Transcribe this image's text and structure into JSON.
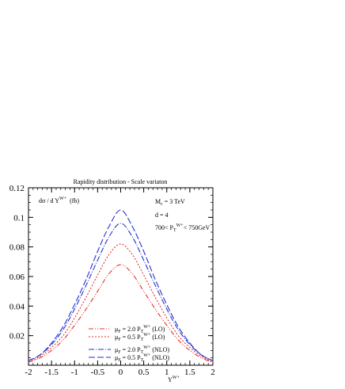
{
  "chart_data": {
    "type": "line",
    "title": "Rapidity distribution - Scale variaton",
    "ylabel": {
      "main": "dσ / d Y",
      "sup": "W+",
      "unit": "(fb)"
    },
    "xlabel": {
      "main": "Y",
      "sup": "W+"
    },
    "xlim": [
      -2,
      2
    ],
    "ylim": [
      0,
      0.12
    ],
    "xticks": [
      "-2",
      "-1.5",
      "-1",
      "-0.5",
      "0",
      "0.5",
      "1",
      "1.5",
      "2"
    ],
    "yticks": [
      "0.02",
      "0.04",
      "0.06",
      "0.08",
      "0.1",
      "0.12"
    ],
    "grid": false,
    "annotations": {
      "mass": {
        "main": "M",
        "sub": "c",
        "rest": " = 3 TeV"
      },
      "dim": "d = 4",
      "cut": {
        "pre": "700< P",
        "sub": "T",
        "sup": "W+",
        "post": "< 750GeV"
      }
    },
    "legend": {
      "position": "bottom-center",
      "entries": [
        {
          "mu": "μ",
          "mu_sub": "F",
          "text_pre": " = 2.0 P",
          "text_sub": "T",
          "text_sup": "W+",
          "text_post": " (LO)",
          "series": 0
        },
        {
          "mu": "μ",
          "mu_sub": "F",
          "text_pre": " = 0.5 P",
          "text_sub": "T",
          "text_sup": "W+",
          "text_post": " (LO)",
          "series": 1
        },
        {
          "mu": "μ",
          "mu_sub": "F",
          "text_pre": " = 2.0 P",
          "text_sub": "T",
          "text_sup": "W+",
          "text_post": " (NLO)",
          "series": 2
        },
        {
          "mu": "μ",
          "mu_sub": "F",
          "text_pre": " = 0.5 P",
          "text_sub": "T",
          "text_sup": "W+",
          "text_post": " (NLO)",
          "series": 3
        }
      ]
    },
    "x": [
      -2.0,
      -1.75,
      -1.5,
      -1.25,
      -1.0,
      -0.75,
      -0.5,
      -0.25,
      0.0,
      0.25,
      0.5,
      0.75,
      1.0,
      1.25,
      1.5,
      1.75,
      2.0
    ],
    "series": [
      {
        "name": "μF = 2.0 PT W+ (LO)",
        "color": "#e8322a",
        "dash": "6,2,1,2,1,2",
        "values": [
          0.002,
          0.005,
          0.01,
          0.017,
          0.027,
          0.038,
          0.05,
          0.062,
          0.068,
          0.062,
          0.05,
          0.038,
          0.027,
          0.017,
          0.01,
          0.005,
          0.002
        ]
      },
      {
        "name": "μF = 0.5 PT W+ (LO)",
        "color": "#e8322a",
        "dash": "2,2",
        "values": [
          0.002,
          0.006,
          0.012,
          0.02,
          0.032,
          0.046,
          0.061,
          0.075,
          0.082,
          0.075,
          0.061,
          0.046,
          0.032,
          0.02,
          0.012,
          0.006,
          0.002
        ]
      },
      {
        "name": "μF = 2.0 PT W+ (NLO)",
        "color": "#2233cc",
        "dash": "7,2,1,2",
        "values": [
          0.003,
          0.007,
          0.014,
          0.024,
          0.038,
          0.054,
          0.071,
          0.087,
          0.096,
          0.087,
          0.071,
          0.054,
          0.038,
          0.024,
          0.014,
          0.007,
          0.003
        ]
      },
      {
        "name": "μF = 0.5 PT W+ (NLO)",
        "color": "#2233cc",
        "dash": "8,3",
        "values": [
          0.003,
          0.007,
          0.015,
          0.026,
          0.041,
          0.058,
          0.077,
          0.094,
          0.105,
          0.094,
          0.077,
          0.058,
          0.041,
          0.026,
          0.015,
          0.007,
          0.003
        ]
      }
    ]
  }
}
